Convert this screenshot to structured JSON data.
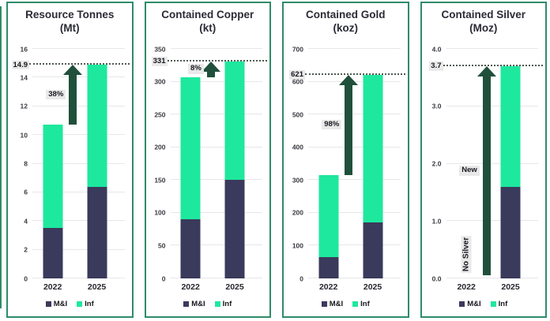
{
  "colors": {
    "mi_series": "#3a3a5c",
    "inf_series": "#1ee89e",
    "arrow": "#20503c",
    "panel_border": "#2e8c69",
    "title_text": "#2b2b36",
    "gridline": "#e7e7ea",
    "dotted_target_line": "#4e5a52",
    "label_background": "#e9e9e9"
  },
  "legend": {
    "items": [
      {
        "label": "M&I",
        "color_key": "mi"
      },
      {
        "label": "Inf",
        "color_key": "inf"
      }
    ]
  },
  "chart_data": [
    {
      "type": "bar",
      "stacked": true,
      "title": "Resource Tonnes",
      "subtitle": "(Mt)",
      "categories": [
        "2022",
        "2025"
      ],
      "series": [
        {
          "name": "M&I",
          "values": [
            3.5,
            6.4
          ]
        },
        {
          "name": "Inf",
          "values": [
            7.2,
            8.5
          ]
        }
      ],
      "totals": [
        10.7,
        14.9
      ],
      "ylim": [
        0,
        16
      ],
      "ytick_values": [
        0,
        2,
        4,
        6,
        8,
        10,
        12,
        14,
        16
      ],
      "ytick_labels": [
        "0",
        "2",
        "4",
        "6",
        "8",
        "10",
        "12",
        "14",
        "16"
      ],
      "target_value": 14.9,
      "target_label": "14.9",
      "annotation": {
        "label": "38%",
        "arrow_from": 10.7,
        "arrow_to": 14.9
      },
      "grid": true,
      "legend_position": "bottom"
    },
    {
      "type": "bar",
      "stacked": true,
      "title": "Contained Copper",
      "subtitle": "(kt)",
      "categories": [
        "2022",
        "2025"
      ],
      "series": [
        {
          "name": "M&I",
          "values": [
            90,
            150
          ]
        },
        {
          "name": "Inf",
          "values": [
            217,
            181
          ]
        }
      ],
      "totals": [
        307,
        331
      ],
      "ylim": [
        0,
        350
      ],
      "ytick_values": [
        0,
        50,
        100,
        150,
        200,
        250,
        300,
        350
      ],
      "ytick_labels": [
        "0",
        "50",
        "100",
        "150",
        "200",
        "250",
        "300",
        "350"
      ],
      "target_value": 331,
      "target_label": "331",
      "annotation": {
        "label": "8%",
        "arrow_from": 307,
        "arrow_to": 331
      },
      "grid": true,
      "legend_position": "bottom"
    },
    {
      "type": "bar",
      "stacked": true,
      "title": "Contained Gold",
      "subtitle": "(koz)",
      "categories": [
        "2022",
        "2025"
      ],
      "series": [
        {
          "name": "M&I",
          "values": [
            65,
            170
          ]
        },
        {
          "name": "Inf",
          "values": [
            250,
            451
          ]
        }
      ],
      "totals": [
        315,
        621
      ],
      "ylim": [
        0,
        700
      ],
      "ytick_values": [
        0,
        100,
        200,
        300,
        400,
        500,
        600,
        700
      ],
      "ytick_labels": [
        "0",
        "100",
        "200",
        "300",
        "400",
        "500",
        "600",
        "700"
      ],
      "target_value": 621,
      "target_label": "621",
      "annotation": {
        "label": "98%",
        "arrow_from": 315,
        "arrow_to": 621
      },
      "grid": true,
      "legend_position": "bottom"
    },
    {
      "type": "bar",
      "stacked": true,
      "title": "Contained Silver",
      "subtitle": "(Moz)",
      "categories": [
        "2022",
        "2025"
      ],
      "series": [
        {
          "name": "M&I",
          "values": [
            0,
            1.6
          ]
        },
        {
          "name": "Inf",
          "values": [
            0,
            2.1
          ]
        }
      ],
      "totals": [
        0,
        3.7
      ],
      "ylim": [
        0,
        4
      ],
      "ytick_values": [
        0,
        1,
        2,
        3,
        4
      ],
      "ytick_labels": [
        "0.0",
        "1.0",
        "2.0",
        "3.0",
        "4.0"
      ],
      "target_value": 3.7,
      "target_label": "3.7",
      "annotation": {
        "label": "New",
        "arrow_from": 0.05,
        "arrow_to": 3.7,
        "note": "No Silver",
        "note_category": "2022"
      },
      "grid": true,
      "legend_position": "bottom"
    }
  ]
}
